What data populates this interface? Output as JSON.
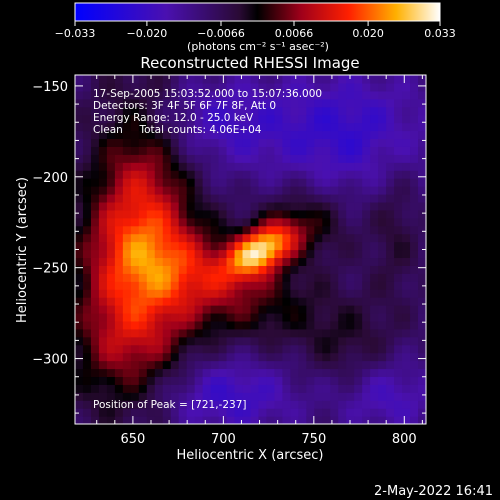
{
  "colorbar": {
    "ticks": [
      "-0.033",
      "-0.020",
      "-0.0066",
      "0.0066",
      "0.020",
      "0.033"
    ],
    "units": "(photons cm⁻² s⁻¹ asec⁻²)",
    "min": -0.033,
    "max": 0.033,
    "colormap": "blue-purple-red-yellow-white"
  },
  "plot": {
    "title": "Reconstructed RHESSI Image",
    "xlabel": "Heliocentric X (arcsec)",
    "ylabel": "Heliocentric Y (arcsec)",
    "annotations": {
      "time": "17-Sep-2005 15:03:52.000 to 15:07:36.000",
      "detectors": "Detectors: 3F 4F 5F 6F 7F 8F, Att 0",
      "energy": "Energy Range: 12.0 - 25.0 keV",
      "clean": "Clean     Total counts: 4.06E+04",
      "peak": "Position of Peak = [721,-237]"
    },
    "footer_date": "2-May-2022 16:41"
  },
  "chart_data": {
    "type": "heatmap",
    "title": "Reconstructed RHESSI Image",
    "xlabel": "Heliocentric X (arcsec)",
    "ylabel": "Heliocentric Y (arcsec)",
    "xlim": [
      618,
      812
    ],
    "ylim": [
      -336,
      -144
    ],
    "xticks": [
      650,
      700,
      750,
      800
    ],
    "yticks": [
      -150,
      -200,
      -250,
      -300
    ],
    "colorbar_range": [
      -0.033,
      0.033
    ],
    "colorbar_ticks": [
      -0.033,
      -0.02,
      -0.0066,
      0.0066,
      0.02,
      0.033
    ],
    "peak_position": [
      721,
      -237
    ],
    "sources": [
      {
        "x": 721,
        "y": -240,
        "amplitude": 0.033,
        "sigma_x": 14,
        "sigma_y": 8,
        "angle_deg": 30
      },
      {
        "x": 655,
        "y": -210,
        "amplitude": 0.02,
        "sigma_x": 20,
        "sigma_y": 42,
        "angle_deg": 0
      },
      {
        "x": 648,
        "y": -285,
        "amplitude": 0.018,
        "sigma_x": 24,
        "sigma_y": 32,
        "angle_deg": 0
      },
      {
        "x": 690,
        "y": -255,
        "amplitude": 0.017,
        "sigma_x": 40,
        "sigma_y": 18,
        "angle_deg": -20
      },
      {
        "x": 745,
        "y": -225,
        "amplitude": 0.01,
        "sigma_x": 18,
        "sigma_y": 14,
        "angle_deg": 0
      },
      {
        "x": 770,
        "y": -295,
        "amplitude": 0.006,
        "sigma_x": 18,
        "sigma_y": 20,
        "angle_deg": 0
      },
      {
        "x": 795,
        "y": -225,
        "amplitude": 0.006,
        "sigma_x": 10,
        "sigma_y": 30,
        "angle_deg": 0
      },
      {
        "x": 690,
        "y": -170,
        "amplitude": -0.01,
        "sigma_x": 30,
        "sigma_y": 18,
        "angle_deg": 0
      },
      {
        "x": 770,
        "y": -175,
        "amplitude": -0.012,
        "sigma_x": 35,
        "sigma_y": 25,
        "angle_deg": 0
      },
      {
        "x": 700,
        "y": -320,
        "amplitude": -0.012,
        "sigma_x": 30,
        "sigma_y": 15,
        "angle_deg": 0
      },
      {
        "x": 790,
        "y": -320,
        "amplitude": -0.01,
        "sigma_x": 20,
        "sigma_y": 15,
        "angle_deg": 0
      }
    ]
  }
}
